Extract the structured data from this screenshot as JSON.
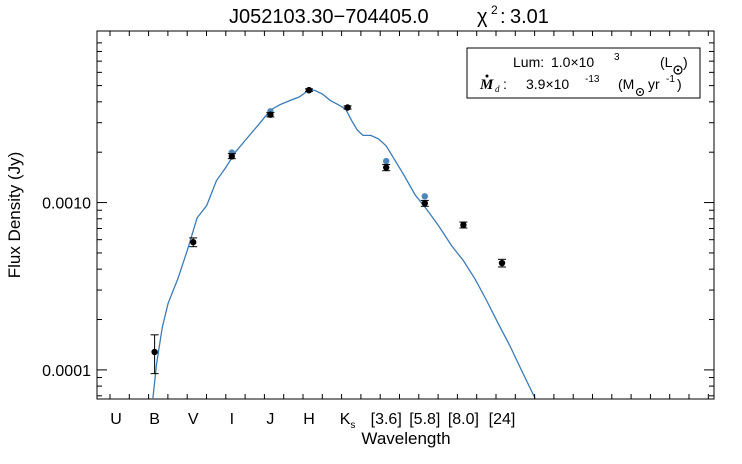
{
  "chart_data": {
    "type": "scatter",
    "title": "J052103.30−704405.0",
    "chi2_symbol": "χ",
    "chi2_value": "3.01",
    "xlabel": "Wavelength",
    "ylabel": "Flux Density (Jy)",
    "yscale": "log",
    "ylim": [
      6.7e-05,
      0.0106
    ],
    "grid": false,
    "bands": [
      {
        "label": "U",
        "x": 1
      },
      {
        "label": "B",
        "x": 2
      },
      {
        "label": "V",
        "x": 3
      },
      {
        "label": "I",
        "x": 4
      },
      {
        "label": "J",
        "x": 5
      },
      {
        "label": "H",
        "x": 6
      },
      {
        "label": "K",
        "sub": "s",
        "x": 7
      },
      {
        "label": "[3.6]",
        "x": 8
      },
      {
        "label": "[5.8]",
        "x": 9
      },
      {
        "label": "[8.0]",
        "x": 10
      },
      {
        "label": "[24]",
        "x": 11
      }
    ],
    "yticks": [
      {
        "value": 0.0001,
        "label": "0.0001"
      },
      {
        "value": 0.001,
        "label": "0.0010"
      }
    ],
    "legend": {
      "placement": "top-right",
      "lum_label": "Lum:",
      "lum_value": "1.0×10",
      "lum_exp": "3",
      "lum_unit_open": "(L",
      "lum_unit_close": ")",
      "mdot_label": ":",
      "mdot_value": "3.9×10",
      "mdot_exp": "-13",
      "mdot_unit_open": "(M",
      "mdot_unit_mid": "yr",
      "mdot_unit_exp": "-1",
      "mdot_unit_close": ")"
    },
    "series": [
      {
        "role": "observed",
        "color": "#000000",
        "points": [
          {
            "band": "B",
            "y": 0.000128,
            "lo": 9.5e-05,
            "hi": 0.000162
          },
          {
            "band": "V",
            "y": 0.00058,
            "lo": 0.000545,
            "hi": 0.000615
          },
          {
            "band": "I",
            "y": 0.00189,
            "lo": 0.00183,
            "hi": 0.00196
          },
          {
            "band": "J",
            "y": 0.00335,
            "lo": 0.00325,
            "hi": 0.00345
          },
          {
            "band": "H",
            "y": 0.0047,
            "lo": 0.00462,
            "hi": 0.00478
          },
          {
            "band": "Ks",
            "y": 0.0037,
            "lo": 0.00362,
            "hi": 0.00378
          },
          {
            "band": "[3.6]",
            "y": 0.00162,
            "lo": 0.00155,
            "hi": 0.00169
          },
          {
            "band": "[5.8]",
            "y": 0.00099,
            "lo": 0.00095,
            "hi": 0.00103
          },
          {
            "band": "[8.0]",
            "y": 0.000735,
            "lo": 0.000705,
            "hi": 0.000765
          },
          {
            "band": "[24]",
            "y": 0.000435,
            "lo": 0.000412,
            "hi": 0.000458
          }
        ]
      },
      {
        "role": "model",
        "color": "#4f86b8",
        "points": [
          {
            "band": "I",
            "y": 0.00199
          },
          {
            "band": "J",
            "y": 0.00351
          },
          {
            "band": "H",
            "y": 0.00468
          },
          {
            "band": "[3.6]",
            "y": 0.00177
          },
          {
            "band": "[5.8]",
            "y": 0.00109
          }
        ]
      }
    ],
    "model_curve": {
      "color": "#3c7bb7",
      "points": [
        [
          1.95,
          6.6e-05
        ],
        [
          2.05,
          0.000108
        ],
        [
          2.2,
          0.00018
        ],
        [
          2.35,
          0.00025
        ],
        [
          2.6,
          0.00035
        ],
        [
          2.85,
          0.00052
        ],
        [
          3.1,
          0.00081
        ],
        [
          3.35,
          0.00096
        ],
        [
          3.6,
          0.00135
        ],
        [
          3.85,
          0.00163
        ],
        [
          4.1,
          0.00201
        ],
        [
          4.4,
          0.00243
        ],
        [
          4.7,
          0.00293
        ],
        [
          5.0,
          0.00357
        ],
        [
          5.25,
          0.00385
        ],
        [
          5.5,
          0.00407
        ],
        [
          5.75,
          0.00428
        ],
        [
          6.0,
          0.00471
        ],
        [
          6.15,
          0.00468
        ],
        [
          6.35,
          0.00445
        ],
        [
          6.55,
          0.00408
        ],
        [
          6.75,
          0.00385
        ],
        [
          6.95,
          0.00362
        ],
        [
          7.1,
          0.0031
        ],
        [
          7.25,
          0.00271
        ],
        [
          7.4,
          0.00252
        ],
        [
          7.6,
          0.00252
        ],
        [
          7.8,
          0.0024
        ],
        [
          8.0,
          0.00218
        ],
        [
          8.2,
          0.00183
        ],
        [
          8.45,
          0.00147
        ],
        [
          8.75,
          0.00111
        ],
        [
          9.05,
          0.00091
        ],
        [
          9.35,
          0.00073
        ],
        [
          9.7,
          0.00055
        ],
        [
          10.0,
          0.00045
        ],
        [
          10.3,
          0.00035
        ],
        [
          10.6,
          0.00026
        ],
        [
          10.9,
          0.00019
        ],
        [
          11.2,
          0.00014
        ],
        [
          11.5,
          0.0001
        ],
        [
          11.8,
          7.2e-05
        ],
        [
          11.88,
          6.6e-05
        ]
      ]
    }
  }
}
